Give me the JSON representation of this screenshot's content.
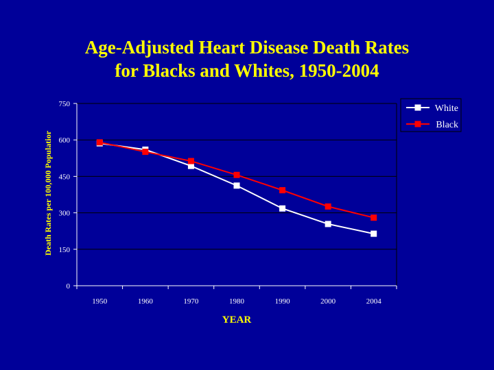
{
  "title": {
    "line1": "Age-Adjusted Heart Disease Death Rates",
    "line2": "for Blacks and Whites, 1950-2004"
  },
  "chart_data": {
    "type": "line",
    "categories": [
      "1950",
      "1960",
      "1970",
      "1980",
      "1990",
      "2000",
      "2004"
    ],
    "series": [
      {
        "name": "White",
        "color": "#ffffff",
        "values": [
          586,
          560,
          493,
          412,
          318,
          254,
          214
        ]
      },
      {
        "name": "Black",
        "color": "#ff0000",
        "values": [
          590,
          551,
          513,
          456,
          393,
          326,
          280
        ]
      }
    ],
    "ylim": [
      0,
      750
    ],
    "yticks": [
      0,
      150,
      300,
      450,
      600,
      750
    ],
    "ytick_labels": [
      "0",
      "150",
      "300",
      "450",
      "600",
      "750"
    ],
    "xlabel": "YEAR",
    "ylabel": "Death Rates per 100,000 Populatior",
    "grid": true,
    "legend": "top-right"
  }
}
